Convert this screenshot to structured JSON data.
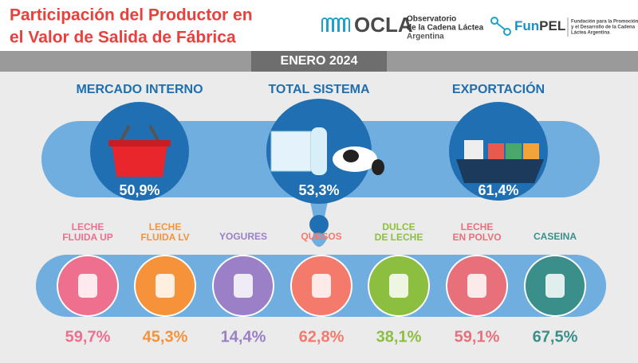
{
  "header": {
    "title": [
      "Participación del Productor en",
      "el Valor de Salida de Fábrica"
    ],
    "ocla": {
      "name": "OCLA",
      "subtitle": [
        "Observatorio",
        "de la Cadena Láctea"
      ],
      "country": "Argentina"
    },
    "funpel": {
      "name_a": "Fun",
      "name_b": "PEL",
      "subtitle": [
        "Fundación para la Promoción",
        "y el Desarrollo de la Cadena",
        "Láctea Argentina"
      ]
    }
  },
  "period": "ENERO 2024",
  "segments": [
    {
      "label": "MERCADO INTERNO",
      "value": "50,9%"
    },
    {
      "label": "TOTAL SISTEMA",
      "value": "53,3%"
    },
    {
      "label": "EXPORTACIÓN",
      "value": "61,4%"
    }
  ],
  "products": [
    {
      "label": [
        "LECHE",
        "FLUIDA UP"
      ],
      "value": "59,7%",
      "color": "#ee6f8e"
    },
    {
      "label": [
        "LECHE",
        "FLUIDA LV"
      ],
      "value": "45,3%",
      "color": "#f6933a"
    },
    {
      "label": [
        "YOGURES"
      ],
      "value": "14,4%",
      "color": "#9b7fc7"
    },
    {
      "label": [
        "QUESOS"
      ],
      "value": "62,8%",
      "color": "#f47a6b"
    },
    {
      "label": [
        "DULCE",
        "DE LECHE"
      ],
      "value": "38,1%",
      "color": "#8cbf3f"
    },
    {
      "label": [
        "LECHE",
        "EN POLVO"
      ],
      "value": "59,1%",
      "color": "#e8707a"
    },
    {
      "label": [
        "CASEINA"
      ],
      "value": "67,5%",
      "color": "#3a8f8a"
    }
  ]
}
